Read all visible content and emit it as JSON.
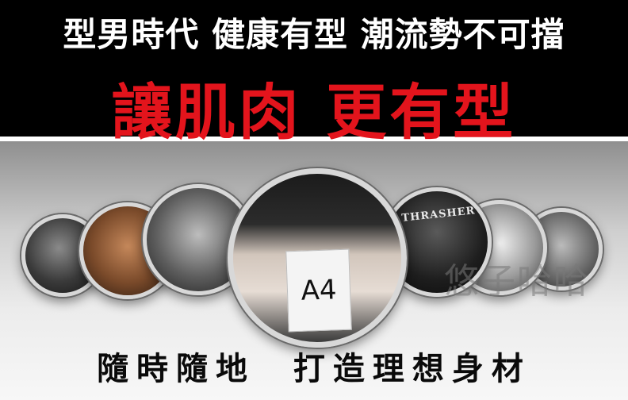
{
  "banner": {
    "headline": "型男時代 健康有型 潮流勢不可擋",
    "subheadline": "讓肌肉 更有型",
    "background_color": "#000000",
    "headline_color": "#ffffff",
    "subheadline_color": "#e3141c"
  },
  "gallery": {
    "sign_text": "A4",
    "shirt_print": "THRASHER",
    "watermark": "悠子哈哈",
    "tagline": "隨時隨地  打造理想身材"
  }
}
